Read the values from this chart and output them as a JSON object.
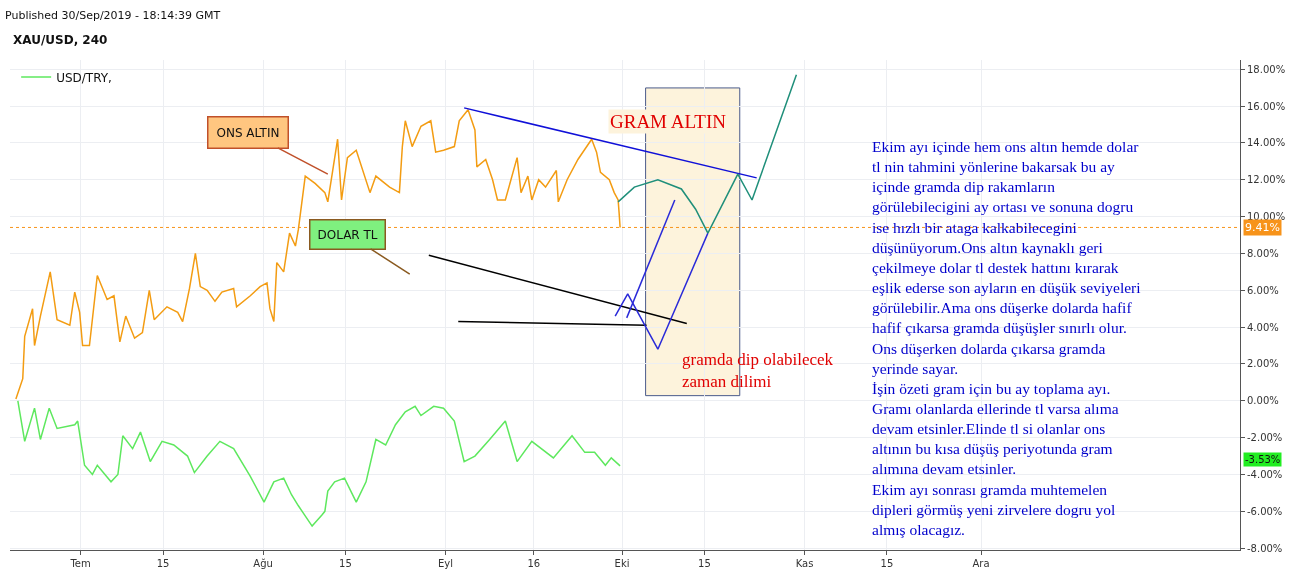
{
  "chart_data": {
    "type": "line",
    "title": "XAU/USD, 240",
    "annotations": [
      "Published 30/Sep/2019 - 18:14:39 GMT",
      "GRAM ALTIN",
      "DOLAR TL",
      "Ekim ayı içinde hem ons altın hemde dolar\ntl nin tahmini yönlerine bakarsak bu ay\niçinde gramda dip rakamların\ngörülebilecigini ay ortası ve sonuna dogru\nise hızlı bir ataga kalkabilecegini\ndüşünüyorum.Ons altın kaynaklı geri\nçekilmeye dolar tl destek hattını kırarak\neşlik ederse son ayların en düşük seviyeleri\ngörülebilir.Ama ons düşerke dolarda hafif\nhafif çıkarsa gramda düşüşler sınırlı olur.\nOns düşerken dolarda çıkarsa gramda\nyerinde sayar.\nİşin özeti gram için bu ay toplama ayı.\nGramı olanlarda ellerinde tl varsa alıma\ndevam etsinler.Elinde tl si olanlar ons\naltının bu kısa düşüş periyotunda gram\nalımına devam etsinler.\nEkim ayı sonrası gramda muhtemelen\ndipleri görmüş yeni zirvelere dogru yol\nalmış olacagız.",
      {
        "text": "ONS ALTIN",
        "x": "2019-08-12",
        "y": 12.3
      },
      "-3.53%"
    ],
    "xlim": [
      "2019-06-19",
      "2020-01-14"
    ],
    "xticks": [
      {
        "value": "2019-07-01",
        "label": "Tem"
      },
      {
        "value": "2019-07-15",
        "label": "15"
      },
      {
        "value": "2019-08-01",
        "label": "Ağu"
      },
      {
        "value": "2019-08-15",
        "label": "15"
      },
      {
        "value": "2019-09-01",
        "label": "Eyl"
      },
      {
        "value": "2019-09-16",
        "label": "16"
      },
      {
        "value": "2019-10-01",
        "label": "Eki"
      },
      {
        "value": "2019-10-15",
        "label": "15"
      },
      {
        "value": "2019-11-01",
        "label": "Kas"
      },
      {
        "value": "2019-11-15",
        "label": "15"
      },
      {
        "value": "2019-12-01",
        "label": "Ara"
      }
    ],
    "ylim": [
      -8.1,
      18.5
    ],
    "yticks": [
      {
        "value": 18,
        "label": "18.00%"
      },
      {
        "value": 16,
        "label": "16.00%"
      },
      {
        "value": 14,
        "label": "14.00%"
      },
      {
        "value": 12,
        "label": "12.00%"
      },
      {
        "value": 10,
        "label": "10.00%"
      },
      {
        "value": 8,
        "label": "8.00%"
      },
      {
        "value": 6,
        "label": "6.00%"
      },
      {
        "value": 4,
        "label": "4.00%"
      },
      {
        "value": 2,
        "label": "2.00%"
      },
      {
        "value": 0,
        "label": "0.00%"
      },
      {
        "value": -2,
        "label": "-2.00%"
      },
      {
        "value": -4,
        "label": "-4.00%"
      },
      {
        "value": -6,
        "label": "-6.00%"
      },
      {
        "value": -8,
        "label": "-8.00%"
      }
    ],
    "grid": true,
    "legend": "top left",
    "ref_lines": [
      {
        "axis": "y",
        "value": 9.41,
        "label": "9.41%",
        "color": "#f7931a",
        "line_style": "dotted"
      }
    ],
    "bands": [
      {
        "axis": "x",
        "from": "2019-10-05",
        "to": "2019-10-21",
        "label": "gramda dip olabilecek\nzaman dilimi",
        "color": "#fdf3dc"
      }
    ],
    "series": [
      {
        "color": "#f39c12",
        "x": [
          "2019-06-20T00:00",
          "2019-06-21T04:00",
          "2019-06-21T12:00",
          "2019-06-22T20:00",
          "2019-06-23T04:00",
          "2019-06-24T04:00",
          "2019-06-25T20:00",
          "2019-06-27T00:00",
          "2019-06-29T04:00",
          "2019-06-30T00:00",
          "2019-06-30T20:00",
          "2019-07-01T08:00",
          "2019-07-02T12:00",
          "2019-07-03T20:00",
          "2019-07-05T12:00",
          "2019-07-06T16:00",
          "2019-07-07T16:00",
          "2019-07-08T16:00",
          "2019-07-10T04:00",
          "2019-07-11T12:00",
          "2019-07-12T16:00",
          "2019-07-13T12:00",
          "2019-07-15T16:00",
          "2019-07-17T12:00",
          "2019-07-18T08:00",
          "2019-07-19T12:00",
          "2019-07-20T12:00",
          "2019-07-21T08:00",
          "2019-07-22T12:00",
          "2019-07-23T20:00",
          "2019-07-25T00:00",
          "2019-07-27T00:00",
          "2019-07-27T12:00",
          "2019-07-29T20:00",
          "2019-07-31T12:00",
          "2019-08-01T16:00",
          "2019-08-02T04:00",
          "2019-08-02T20:00",
          "2019-08-03T08:00",
          "2019-08-04T12:00",
          "2019-08-05T12:00",
          "2019-08-06T12:00",
          "2019-08-07T00:00",
          "2019-08-08T04:00",
          "2019-08-09T20:00",
          "2019-08-11T12:00",
          "2019-08-12T00:00",
          "2019-08-12T20:00",
          "2019-08-13T16:00",
          "2019-08-14T08:00",
          "2019-08-15T08:00",
          "2019-08-16T20:00",
          "2019-08-19T04:00",
          "2019-08-20T04:00",
          "2019-08-22T12:00",
          "2019-08-24T04:00",
          "2019-08-24T16:00",
          "2019-08-25T04:00",
          "2019-08-26T08:00",
          "2019-08-27T20:00",
          "2019-08-29T12:00",
          "2019-08-30T08:00",
          "2019-08-31T16:00",
          "2019-09-02T12:00",
          "2019-09-03T08:00",
          "2019-09-04T20:00",
          "2019-09-06T00:00",
          "2019-09-06T08:00",
          "2019-09-07T20:00",
          "2019-09-09T00:00",
          "2019-09-09T20:00",
          "2019-09-11T04:00",
          "2019-09-13T04:00",
          "2019-09-13T20:00",
          "2019-09-15T00:00",
          "2019-09-15T16:00",
          "2019-09-16T20:00",
          "2019-09-18T00:00",
          "2019-09-19T20:00",
          "2019-09-20T04:00",
          "2019-09-21T16:00",
          "2019-09-23T12:00",
          "2019-09-25T20:00",
          "2019-09-26T16:00",
          "2019-09-27T08:00",
          "2019-09-28T20:00",
          "2019-09-29T16:00",
          "2019-09-30T08:00",
          "2019-09-30T12:00",
          "2019-09-30T16:00"
        ],
        "values": [
          0.1,
          1.2,
          3.5,
          5.0,
          3.0,
          4.6,
          7.0,
          4.4,
          4.1,
          5.9,
          4.8,
          3.0,
          3.0,
          6.8,
          5.5,
          5.7,
          3.2,
          4.6,
          3.4,
          3.7,
          6.0,
          4.4,
          5.1,
          4.8,
          4.3,
          6.1,
          8.0,
          6.2,
          6.0,
          5.4,
          5.9,
          6.1,
          5.1,
          5.7,
          6.2,
          6.4,
          5.0,
          4.3,
          7.5,
          7.0,
          9.1,
          8.4,
          9.3,
          12.2,
          11.8,
          11.3,
          10.8,
          12.5,
          14.2,
          10.9,
          13.2,
          13.6,
          11.3,
          12.2,
          11.6,
          11.3,
          13.8,
          15.2,
          13.8,
          14.9,
          15.2,
          13.5,
          13.6,
          13.8,
          15.2,
          15.8,
          14.7,
          12.7,
          13.1,
          12.0,
          10.9,
          10.9,
          13.2,
          11.3,
          12.2,
          10.9,
          12.0,
          11.6,
          12.5,
          10.8,
          12.0,
          13.1,
          14.2,
          13.5,
          12.4,
          12.0,
          11.3,
          10.9,
          10.2,
          9.41
        ]
      },
      {
        "name": "USD/TRY,",
        "color": "#5ee85e",
        "x": [
          "2019-06-20T08:00",
          "2019-06-21T12:00",
          "2019-06-23T04:00",
          "2019-06-24T04:00",
          "2019-06-25T16:00",
          "2019-06-27T00:00",
          "2019-06-30T00:00",
          "2019-06-30T12:00",
          "2019-07-01T16:00",
          "2019-07-03T00:00",
          "2019-07-03T20:00",
          "2019-07-06T04:00",
          "2019-07-07T08:00",
          "2019-07-08T04:00",
          "2019-07-09T20:00",
          "2019-07-11T04:00",
          "2019-07-12T20:00",
          "2019-07-14T20:00",
          "2019-07-16T20:00",
          "2019-07-19T04:00",
          "2019-07-20T08:00",
          "2019-07-22T12:00",
          "2019-07-24T16:00",
          "2019-07-27T00:00",
          "2019-07-29T20:00",
          "2019-08-01T04:00",
          "2019-08-02T20:00",
          "2019-08-04T12:00",
          "2019-08-05T20:00",
          "2019-08-07T00:00",
          "2019-08-09T08:00",
          "2019-08-11T00:00",
          "2019-08-11T12:00",
          "2019-08-12T00:00",
          "2019-08-13T04:00",
          "2019-08-14T20:00",
          "2019-08-16T20:00",
          "2019-08-18T12:00",
          "2019-08-20T04:00",
          "2019-08-21T20:00",
          "2019-08-23T12:00",
          "2019-08-25T04:00",
          "2019-08-26T20:00",
          "2019-08-27T20:00",
          "2019-08-30T00:00",
          "2019-08-31T16:00",
          "2019-09-02T12:00",
          "2019-09-04T04:00",
          "2019-09-06T00:00",
          "2019-09-08T12:00",
          "2019-09-11T04:00",
          "2019-09-13T04:00",
          "2019-09-15T16:00",
          "2019-09-19T08:00",
          "2019-09-22T12:00",
          "2019-09-24T16:00",
          "2019-09-26T08:00",
          "2019-09-28T04:00",
          "2019-09-29T04:00",
          "2019-09-30T16:00"
        ],
        "values": [
          0,
          -2.2,
          -0.4,
          -2.1,
          -0.4,
          -1.5,
          -1.3,
          -1.1,
          -3.5,
          -4.0,
          -3.5,
          -4.4,
          -4.0,
          -1.9,
          -2.6,
          -1.7,
          -3.3,
          -2.2,
          -2.4,
          -3.0,
          -3.9,
          -3.0,
          -2.2,
          -2.6,
          -4.1,
          -5.5,
          -4.4,
          -4.2,
          -5.1,
          -5.7,
          -6.8,
          -6.2,
          -6.0,
          -4.9,
          -4.4,
          -4.2,
          -5.5,
          -4.4,
          -2.1,
          -2.4,
          -1.3,
          -0.6,
          -0.3,
          -0.8,
          -0.3,
          -0.4,
          -1.1,
          -3.3,
          -3.0,
          -2.1,
          -1.1,
          -3.3,
          -2.2,
          -3.1,
          -1.9,
          -2.8,
          -2.8,
          -3.5,
          -3.1,
          -3.53
        ]
      },
      {
        "color": "#1010d8",
        "x": [
          "2019-09-04T04:00",
          "2019-10-23T21:00"
        ],
        "values": [
          15.9,
          12.1
        ]
      },
      {
        "color": "#000000",
        "x": [
          "2019-08-29T04:00",
          "2019-10-12T00:00"
        ],
        "values": [
          7.9,
          4.2
        ]
      },
      {
        "color": "#000000",
        "x": [
          "2019-09-03T04:00",
          "2019-10-05T04:00"
        ],
        "values": [
          4.3,
          4.1
        ]
      },
      {
        "color": "#2a2ad8",
        "x": [
          "2019-09-29T20:00",
          "2019-10-01T23:00",
          "2019-10-07T02:00",
          "2019-10-15T14:00"
        ],
        "values": [
          4.6,
          5.8,
          2.8,
          9.1
        ]
      },
      {
        "color": "#2a2ad8",
        "x": [
          "2019-10-01T19:00",
          "2019-10-09T23:00"
        ],
        "values": [
          4.5,
          10.9
        ]
      },
      {
        "color": "#1f8f7a",
        "x": [
          "2019-10-15T14:00",
          "2019-10-20T16:00",
          "2019-10-23T02:00",
          "2019-10-30T15:00"
        ],
        "values": [
          9.1,
          12.3,
          10.9,
          17.7
        ]
      },
      {
        "color": "#1f8f7a",
        "x": [
          "2019-09-30T08:00",
          "2019-10-03T02:00",
          "2019-10-07T02:00",
          "2019-10-11T02:00",
          "2019-10-13T12:00",
          "2019-10-15T14:00"
        ],
        "values": [
          10.8,
          11.6,
          12.0,
          11.5,
          10.4,
          9.1
        ]
      }
    ]
  }
}
